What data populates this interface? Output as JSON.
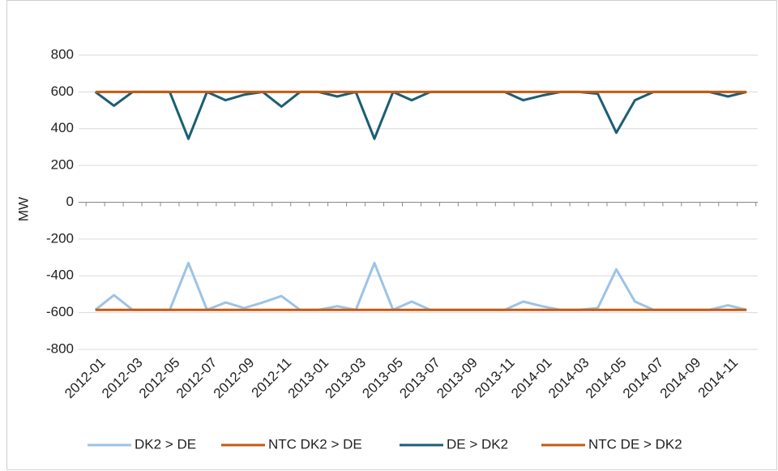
{
  "chart_data": {
    "type": "line",
    "y_label": "MW",
    "categories": [
      "2012-01",
      null,
      "2012-03",
      null,
      "2012-05",
      null,
      "2012-07",
      null,
      "2012-09",
      null,
      "2012-11",
      null,
      "2013-01",
      null,
      "2013-03",
      null,
      "2013-05",
      null,
      "2013-07",
      null,
      "2013-09",
      null,
      "2013-11",
      null,
      "2014-01",
      null,
      "2014-03",
      null,
      "2014-05",
      null,
      "2014-07",
      null,
      "2014-09",
      null,
      "2014-11",
      null
    ],
    "series": [
      {
        "name": "DK2 > DE",
        "color": "#9dc3e6",
        "values": [
          -585,
          -505,
          -585,
          -585,
          -585,
          -330,
          -585,
          -545,
          -575,
          -545,
          -510,
          -585,
          -585,
          -565,
          -585,
          -330,
          -585,
          -540,
          -585,
          -585,
          -585,
          -585,
          -585,
          -540,
          -565,
          -585,
          -585,
          -575,
          -365,
          -540,
          -585,
          -585,
          -585,
          -585,
          -560,
          -585
        ]
      },
      {
        "name": "NTC DK2 > DE",
        "color": "#c55a11",
        "values": [
          -585,
          -585,
          -585,
          -585,
          -585,
          -585,
          -585,
          -585,
          -585,
          -585,
          -585,
          -585,
          -585,
          -585,
          -585,
          -585,
          -585,
          -585,
          -585,
          -585,
          -585,
          -585,
          -585,
          -585,
          -585,
          -585,
          -585,
          -585,
          -585,
          -585,
          -585,
          -585,
          -585,
          -585,
          -585,
          -585
        ]
      },
      {
        "name": "DE > DK2",
        "color": "#1b5e74",
        "values": [
          600,
          525,
          600,
          600,
          600,
          345,
          600,
          555,
          585,
          600,
          520,
          600,
          600,
          575,
          600,
          345,
          600,
          555,
          600,
          600,
          600,
          600,
          600,
          555,
          580,
          600,
          600,
          590,
          378,
          555,
          600,
          600,
          600,
          600,
          575,
          600
        ]
      },
      {
        "name": "NTC DE > DK2",
        "color": "#c55a11",
        "values": [
          600,
          600,
          600,
          600,
          600,
          600,
          600,
          600,
          600,
          600,
          600,
          600,
          600,
          600,
          600,
          600,
          600,
          600,
          600,
          600,
          600,
          600,
          600,
          600,
          600,
          600,
          600,
          600,
          600,
          600,
          600,
          600,
          600,
          600,
          600,
          600
        ]
      }
    ],
    "ylim": [
      -800,
      800
    ],
    "yticks": [
      -800,
      -600,
      -400,
      -200,
      0,
      200,
      400,
      600,
      800
    ],
    "grid": true,
    "legend": "bottom"
  }
}
